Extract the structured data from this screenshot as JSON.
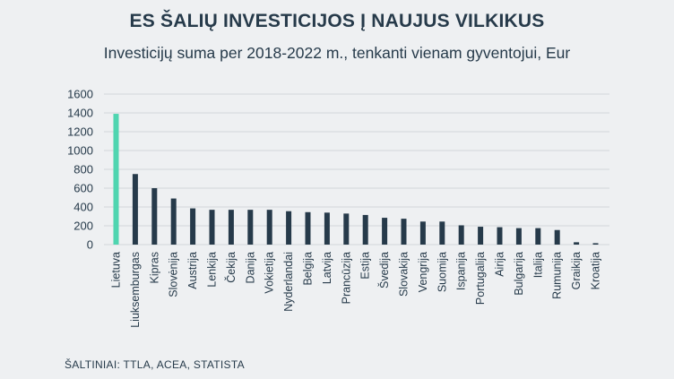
{
  "title": "ES ŠALIŲ INVESTICIJOS Į NAUJUS VILKIKUS",
  "subtitle": "Investicijų suma per 2018-2022 m., tenkanti vienam gyventojui, Eur",
  "source": "ŠALTINIAI: TTLA, ACEA, STATISTA",
  "colors": {
    "highlight": "#4fd5b0",
    "bar": "#263a4a",
    "grid": "#d3d6d9",
    "background": "#eef0f2"
  },
  "chart_data": {
    "type": "bar",
    "title": "ES ŠALIŲ INVESTICIJOS Į NAUJUS VILKIKUS",
    "subtitle": "Investicijų suma per 2018-2022 m., tenkanti vienam gyventojui, Eur",
    "xlabel": "",
    "ylabel": "",
    "ylim": [
      0,
      1600
    ],
    "yticks": [
      0,
      200,
      400,
      600,
      800,
      1000,
      1200,
      1400,
      1600
    ],
    "grid": true,
    "highlight_category": "Lietuva",
    "categories": [
      "Lietuva",
      "Liuksemburgas",
      "Kipras",
      "Slovėnija",
      "Austrija",
      "Lenkija",
      "Čekija",
      "Danija",
      "Vokietija",
      "Nyderlandai",
      "Belgija",
      "Latvija",
      "Prancūzija",
      "Estija",
      "Švedija",
      "Slovakija",
      "Vengrija",
      "Suomija",
      "Ispanija",
      "Portugalija",
      "Airija",
      "Bulgarija",
      "Italija",
      "Rumunija",
      "Graikija",
      "Kroatija"
    ],
    "values": [
      1390,
      750,
      600,
      490,
      385,
      370,
      370,
      370,
      370,
      355,
      345,
      340,
      330,
      315,
      285,
      275,
      245,
      245,
      205,
      190,
      185,
      175,
      175,
      155,
      25,
      15
    ]
  }
}
